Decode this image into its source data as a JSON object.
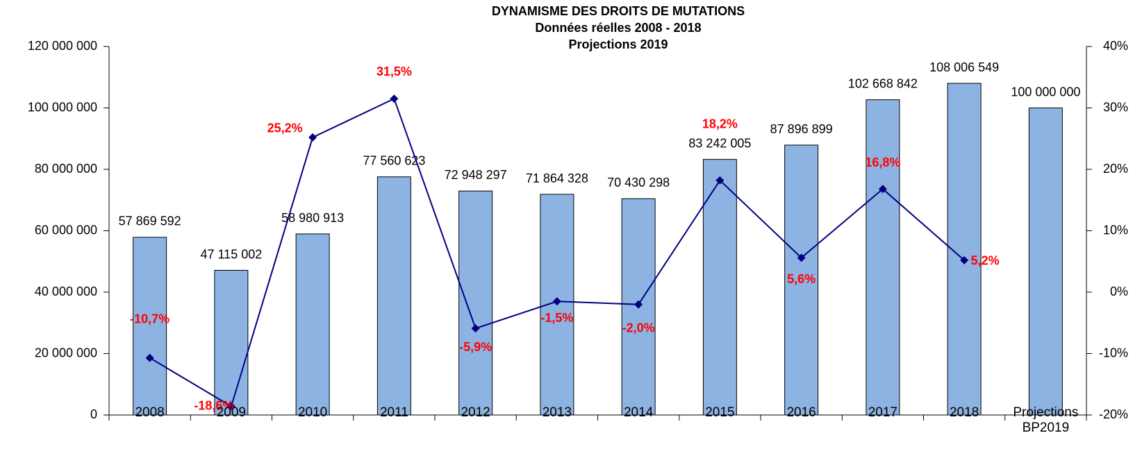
{
  "chart_data": {
    "type": "bar+line",
    "title": "DYNAMISME  DES DROITS DE MUTATIONS",
    "subtitle": [
      "Données réelles 2008 - 2018",
      "Projections 2019"
    ],
    "categories": [
      "2008",
      "2009",
      "2010",
      "2011",
      "2012",
      "2013",
      "2014",
      "2015",
      "2016",
      "2017",
      "2018",
      "Projections BP2019"
    ],
    "series": [
      {
        "type": "bar",
        "color": "#8db3e2",
        "values": [
          57869592,
          47115002,
          58980913,
          77560623,
          72948297,
          71864328,
          70430298,
          83242005,
          87896899,
          102668842,
          108006549,
          100000000
        ],
        "value_labels": [
          "57 869 592",
          "47 115 002",
          "58 980 913",
          "77 560 623",
          "72 948 297",
          "71 864 328",
          "70 430 298",
          "83 242 005",
          "87 896 899",
          "102 668 842",
          "108 006 549",
          "100 000 000"
        ]
      },
      {
        "type": "line",
        "axis": "y2",
        "color": "#000080",
        "label_color": "#ff0000",
        "values": [
          -10.7,
          -18.6,
          25.2,
          31.5,
          -5.9,
          -1.5,
          -2.0,
          18.2,
          5.6,
          16.8,
          5.2,
          null
        ],
        "value_labels": [
          "-10,7%",
          "-18,6%",
          "25,2%",
          "31,5%",
          "-5,9%",
          "-1,5%",
          "-2,0%",
          "18,2%",
          "5,6%",
          "16,8%",
          "5,2%",
          null
        ]
      }
    ],
    "ylim": [
      0,
      120000000
    ],
    "yticks": [
      0,
      {
        "value": 20000000,
        "label": "20 000 000"
      },
      {
        "value": 40000000,
        "label": "40 000 000"
      },
      {
        "value": 60000000,
        "label": "60 000 000"
      },
      {
        "value": 80000000,
        "label": "80 000 000"
      },
      {
        "value": 100000000,
        "label": "100 000 000"
      },
      {
        "value": 120000000,
        "label": "120 000 000"
      }
    ],
    "y2lim": [
      -20,
      40
    ],
    "y2ticks": [
      {
        "value": -20,
        "label": "-20%"
      },
      {
        "value": -10,
        "label": "-10%"
      },
      {
        "value": 0,
        "label": "0%"
      },
      {
        "value": 10,
        "label": "10%"
      },
      {
        "value": 20,
        "label": "20%"
      },
      {
        "value": 30,
        "label": "30%"
      },
      {
        "value": 40,
        "label": "40%"
      }
    ]
  }
}
